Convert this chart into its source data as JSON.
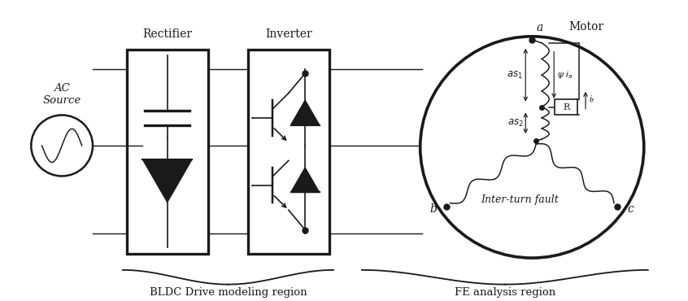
{
  "bg_color": "#ffffff",
  "line_color": "#1a1a1a",
  "rectifier_label": "Rectifier",
  "inverter_label": "Inverter",
  "motor_label": "Motor",
  "ac_label": "AC\nSource",
  "bldc_label": "BLDC Drive modeling region",
  "fe_label": "FE analysis region",
  "interturn_label": "Inter-turn fault",
  "node_a_label": "a",
  "node_b_label": "b",
  "node_c_label": "c",
  "as1_label": "as_1",
  "as2_label": "as_2",
  "psi_label": "\\psi i_a",
  "if_label": "i_f",
  "R_label": "R",
  "figsize": [
    8.46,
    3.7
  ],
  "dpi": 100
}
